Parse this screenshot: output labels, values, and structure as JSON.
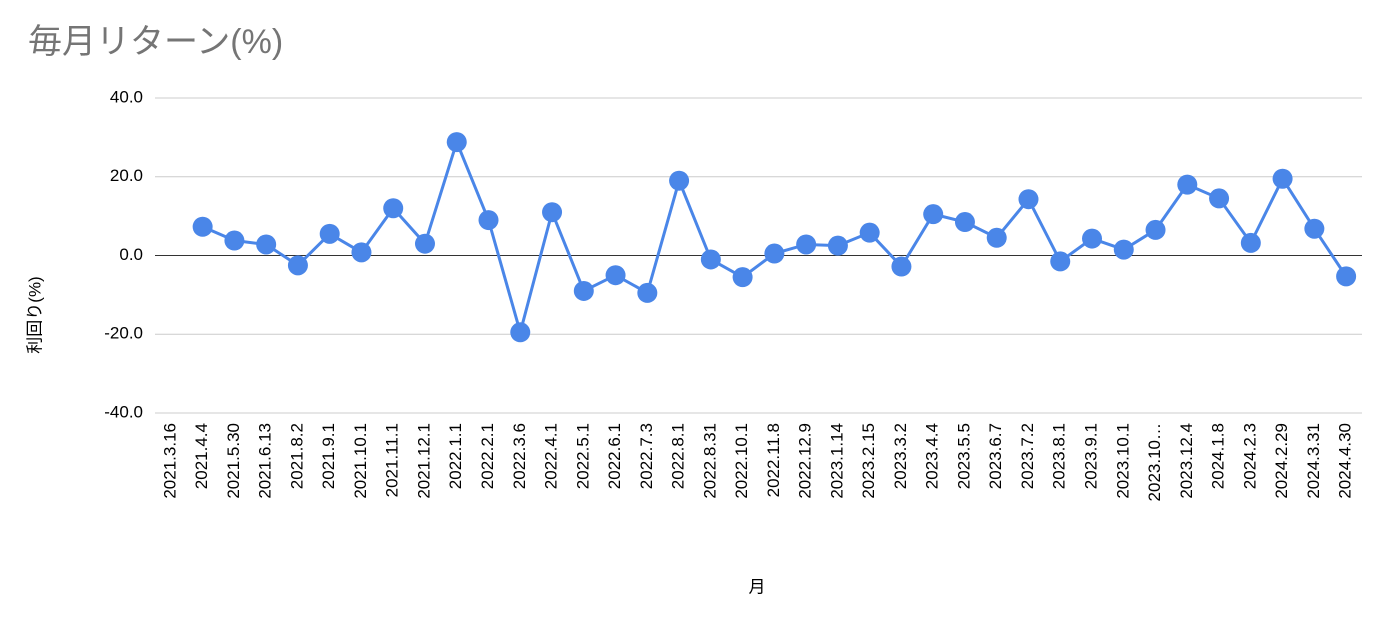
{
  "chart_data": {
    "type": "line",
    "title": "毎月リターン(%)",
    "x_label": "月",
    "y_label": "利回り(%)",
    "categories": [
      "2021.3.16",
      "2021.4.4",
      "2021.5.30",
      "2021.6.13",
      "2021.8.2",
      "2021.9.1",
      "2021.10.1",
      "2021.11.1",
      "2021.12.1",
      "2022.1.1",
      "2022.2.1",
      "2022.3.6",
      "2022.4.1",
      "2022.5.1",
      "2022.6.1",
      "2022.7.3",
      "2022.8.1",
      "2022.8.31",
      "2022.10.1",
      "2022.11.8",
      "2022.12.9",
      "2023.1.14",
      "2023.2.15",
      "2023.3.2",
      "2023.4.4",
      "2023.5.5",
      "2023.6.7",
      "2023.7.2",
      "2023.8.1",
      "2023.9.1",
      "2023.10.1",
      "2023.10…",
      "2023.12.4",
      "2024.1.8",
      "2024.2.3",
      "2024.2.29",
      "2024.3.31",
      "2024.4.30"
    ],
    "series": [
      {
        "name": "利回り(%)",
        "color": "#4a86e8",
        "values": [
          null,
          7.3,
          3.8,
          2.8,
          -2.5,
          5.5,
          0.8,
          12,
          3,
          28.8,
          9,
          -19.5,
          11,
          -9,
          -5,
          -9.5,
          19,
          -1,
          -5.5,
          0.5,
          2.8,
          2.5,
          5.8,
          -2.8,
          10.5,
          8.5,
          4.5,
          14.3,
          -1.5,
          4.3,
          1.5,
          6.5,
          18,
          14.5,
          3.2,
          19.5,
          6.8,
          -5.3
        ]
      }
    ],
    "ylim": [
      -40,
      40
    ],
    "yticks": [
      {
        "value": -40,
        "label": "-40.0"
      },
      {
        "value": -20,
        "label": "-20.0"
      },
      {
        "value": 0,
        "label": "0.0"
      },
      {
        "value": 20,
        "label": "20.0"
      },
      {
        "value": 40,
        "label": "40.0"
      }
    ],
    "grid": true
  }
}
